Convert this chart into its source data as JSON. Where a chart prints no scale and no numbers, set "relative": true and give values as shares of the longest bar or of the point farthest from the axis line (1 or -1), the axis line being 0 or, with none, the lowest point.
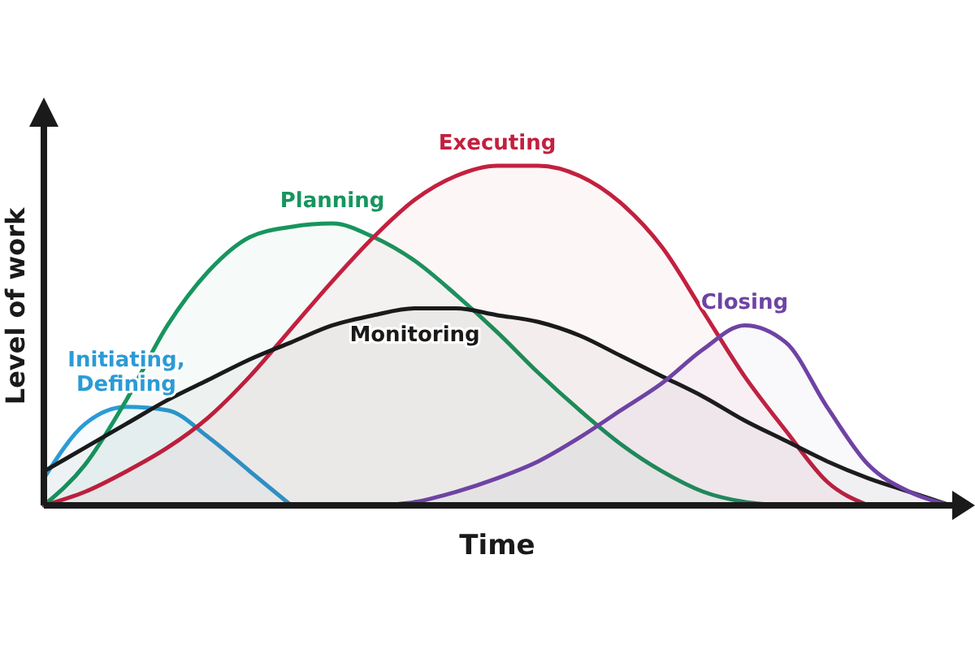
{
  "chart_data": {
    "type": "area",
    "relative": true,
    "xlabel": "Time",
    "ylabel": "Level of work",
    "categories": [
      null,
      null,
      null,
      null,
      null,
      null,
      null,
      null,
      null,
      null,
      null,
      null,
      null,
      null,
      null,
      null,
      null,
      null,
      null,
      null,
      null,
      null,
      null
    ],
    "series": [
      {
        "name": "Initiating, Defining",
        "color": "#2b9bd6",
        "values": [
          0.08,
          0.24,
          0.29,
          0.28,
          0.2,
          0.1,
          0,
          null,
          null,
          null,
          null,
          null,
          null,
          null,
          null,
          null,
          null,
          null,
          null,
          null,
          null,
          null,
          null
        ]
      },
      {
        "name": "Planning",
        "color": "#17955e",
        "values": [
          0,
          0.12,
          0.31,
          0.53,
          0.69,
          0.79,
          0.82,
          0.83,
          0.79,
          0.72,
          0.62,
          0.51,
          0.39,
          0.28,
          0.18,
          0.1,
          0.04,
          0.01,
          0,
          null,
          null,
          null,
          null
        ]
      },
      {
        "name": "Executing",
        "color": "#c3203f",
        "values": [
          0,
          0.04,
          0.1,
          0.17,
          0.26,
          0.38,
          0.52,
          0.66,
          0.79,
          0.9,
          0.97,
          1.0,
          1.0,
          0.97,
          0.89,
          0.76,
          0.57,
          0.38,
          0.22,
          0.07,
          0,
          null,
          null
        ]
      },
      {
        "name": "Monitoring",
        "color": "#1a1a1a",
        "values": [
          0.1,
          0.17,
          0.24,
          0.31,
          0.37,
          0.43,
          0.48,
          0.53,
          0.56,
          0.58,
          0.58,
          0.56,
          0.54,
          0.5,
          0.44,
          0.38,
          0.32,
          0.25,
          0.19,
          0.13,
          0.08,
          0.04,
          0
        ]
      },
      {
        "name": "Closing",
        "color": "#6e43a3",
        "values": [
          null,
          null,
          null,
          null,
          null,
          null,
          null,
          null,
          0,
          0.01,
          0.04,
          0.08,
          0.13,
          0.2,
          0.28,
          0.36,
          0.46,
          0.53,
          0.48,
          0.29,
          0.12,
          0.04,
          0
        ]
      }
    ]
  }
}
